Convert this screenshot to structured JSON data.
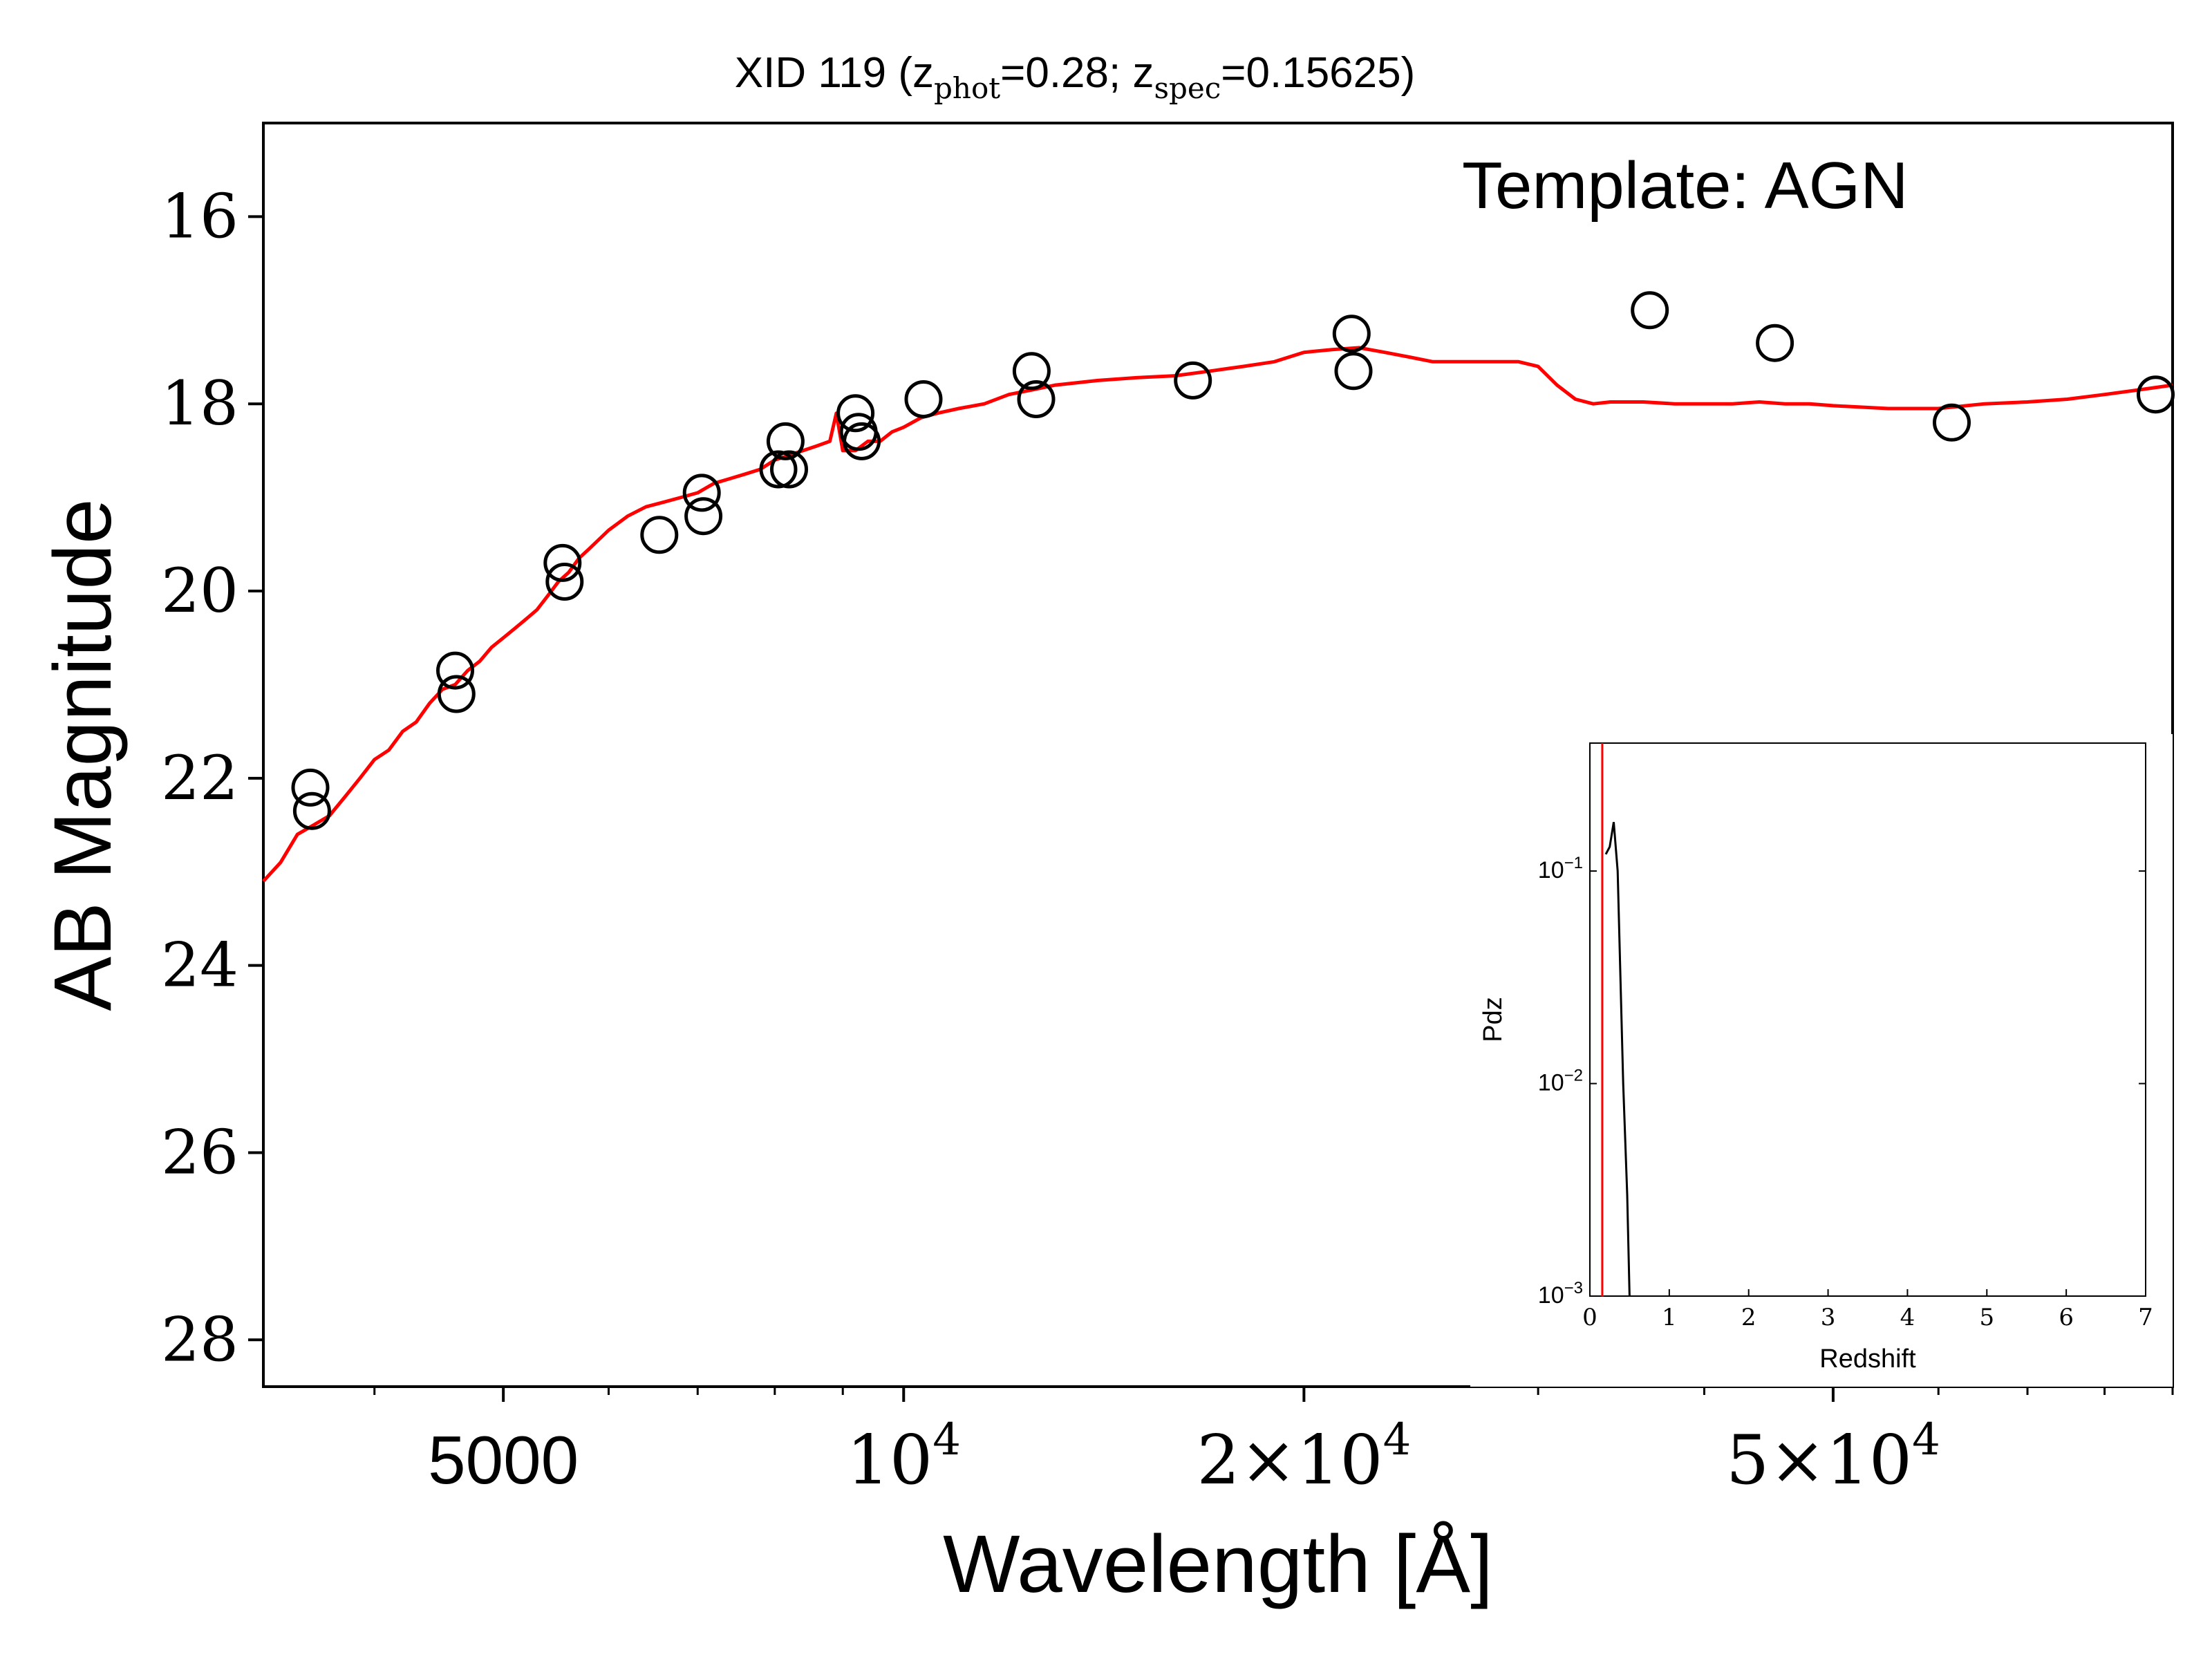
{
  "chart_data": [
    {
      "type": "scatter",
      "title_main": "XID 119 (z",
      "title_phot_sub": "phot",
      "title_mid": "=0.28; z",
      "title_spec_sub": "spec",
      "title_end": "=0.15625)",
      "xlabel": "Wavelength [Å]",
      "ylabel": "AB Magnitude",
      "annotation": "Template: AGN",
      "x_scale": "log",
      "xlim": [
        3300,
        90000
      ],
      "ylim": [
        28.5,
        15
      ],
      "y_inverted": true,
      "xticks": [
        {
          "value": 5000,
          "label": "5000",
          "style": "plain"
        },
        {
          "value": 10000,
          "base": "10",
          "exp": "4",
          "style": "pow"
        },
        {
          "value": 20000,
          "mant": "2×10",
          "exp": "4",
          "style": "pow"
        },
        {
          "value": 50000,
          "mant": "5×10",
          "exp": "4",
          "style": "pow"
        }
      ],
      "yticks": [
        16,
        18,
        20,
        22,
        24,
        26,
        28
      ],
      "colors": {
        "template": "#ff0000",
        "points": "#000000"
      },
      "series": [
        {
          "kind": "points",
          "x": [
            3580,
            3590,
            4600,
            4610,
            5540,
            5560,
            6550,
            7050,
            7070,
            8050,
            8150,
            8200,
            9200,
            9250,
            9300,
            10350,
            12480,
            12580,
            16500,
            21720,
            21790,
            36400,
            45200,
            61400,
            87400
          ],
          "y": [
            22.1,
            22.35,
            20.85,
            21.1,
            19.7,
            19.9,
            19.4,
            18.95,
            19.2,
            18.7,
            18.4,
            18.7,
            18.1,
            18.3,
            18.4,
            17.95,
            17.65,
            17.95,
            17.75,
            17.25,
            17.65,
            17.0,
            17.35,
            18.2,
            17.9
          ]
        },
        {
          "kind": "line",
          "x": [
            3300,
            3400,
            3500,
            3600,
            3700,
            3800,
            3900,
            4000,
            4100,
            4200,
            4300,
            4400,
            4500,
            4600,
            4700,
            4800,
            4900,
            5000,
            5100,
            5200,
            5300,
            5400,
            5500,
            5600,
            5700,
            5800,
            6000,
            6200,
            6400,
            6600,
            6800,
            7000,
            7200,
            7400,
            7600,
            7800,
            8000,
            8200,
            8400,
            8600,
            8800,
            8900,
            9000,
            9200,
            9400,
            9600,
            9800,
            10000,
            10300,
            10600,
            11000,
            11500,
            12000,
            12500,
            13000,
            14000,
            15000,
            16000,
            17000,
            18000,
            19000,
            20000,
            21000,
            22000,
            23000,
            24000,
            25000,
            26000,
            27000,
            28000,
            29000,
            30000,
            31000,
            32000,
            33000,
            34000,
            36000,
            38000,
            40000,
            42000,
            44000,
            46000,
            48000,
            50000,
            55000,
            60000,
            65000,
            70000,
            75000,
            80000,
            85000,
            90000
          ],
          "y": [
            23.1,
            22.9,
            22.6,
            22.5,
            22.4,
            22.2,
            22.0,
            21.8,
            21.7,
            21.5,
            21.4,
            21.2,
            21.05,
            21.0,
            20.85,
            20.75,
            20.6,
            20.5,
            20.4,
            20.3,
            20.2,
            20.05,
            19.9,
            19.8,
            19.65,
            19.55,
            19.35,
            19.2,
            19.1,
            19.05,
            19.0,
            18.95,
            18.85,
            18.8,
            18.75,
            18.7,
            18.6,
            18.55,
            18.5,
            18.45,
            18.4,
            18.1,
            18.5,
            18.5,
            18.4,
            18.4,
            18.3,
            18.25,
            18.15,
            18.1,
            18.05,
            18.0,
            17.9,
            17.85,
            17.8,
            17.75,
            17.72,
            17.7,
            17.65,
            17.6,
            17.55,
            17.45,
            17.42,
            17.4,
            17.45,
            17.5,
            17.55,
            17.55,
            17.55,
            17.55,
            17.55,
            17.6,
            17.8,
            17.95,
            18.0,
            17.98,
            17.98,
            18.0,
            18.0,
            18.0,
            17.98,
            18.0,
            18.0,
            18.02,
            18.05,
            18.05,
            18.0,
            17.98,
            17.95,
            17.9,
            17.85,
            17.8
          ]
        }
      ]
    },
    {
      "type": "line",
      "name": "inset",
      "xlabel": "Redshift",
      "ylabel": "Pdz",
      "y_scale": "log",
      "xlim": [
        0,
        7
      ],
      "ylim": [
        0.001,
        0.4
      ],
      "xticks": [
        "0",
        "1",
        "2",
        "3",
        "4",
        "5",
        "6",
        "7"
      ],
      "yticks": [
        {
          "value": 0.1,
          "base": "10",
          "exp": "−1"
        },
        {
          "value": 0.01,
          "base": "10",
          "exp": "−2"
        },
        {
          "value": 0.001,
          "base": "10",
          "exp": "−3"
        }
      ],
      "spec_z": 0.156,
      "colors": {
        "pdz": "#000000",
        "spec_z": "#ff0000"
      },
      "series": [
        {
          "x": [
            0.2,
            0.25,
            0.3,
            0.35,
            0.42,
            0.47,
            0.5
          ],
          "y": [
            0.12,
            0.13,
            0.17,
            0.1,
            0.01,
            0.003,
            0.001
          ]
        }
      ]
    }
  ]
}
